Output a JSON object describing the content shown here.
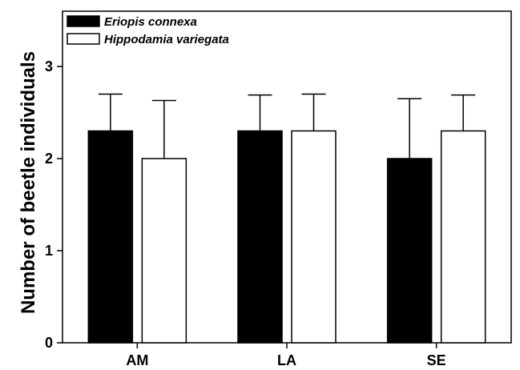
{
  "chart_data": {
    "type": "bar",
    "title": "",
    "xlabel": "",
    "ylabel": "Number of beetle individuals",
    "categories": [
      "AM",
      "LA",
      "SE"
    ],
    "ylim": [
      0,
      3.6
    ],
    "yticks": [
      0,
      1,
      2,
      3
    ],
    "grid": false,
    "legend_position": "top-left",
    "series": [
      {
        "name": "Eriopis connexa",
        "color": "#000000",
        "values": [
          2.3,
          2.3,
          2.0
        ],
        "errors": [
          0.4,
          0.39,
          0.65
        ]
      },
      {
        "name": "Hippodamia variegata",
        "color": "#ffffff",
        "values": [
          2.0,
          2.3,
          2.3
        ],
        "errors": [
          0.63,
          0.4,
          0.39
        ]
      }
    ]
  }
}
